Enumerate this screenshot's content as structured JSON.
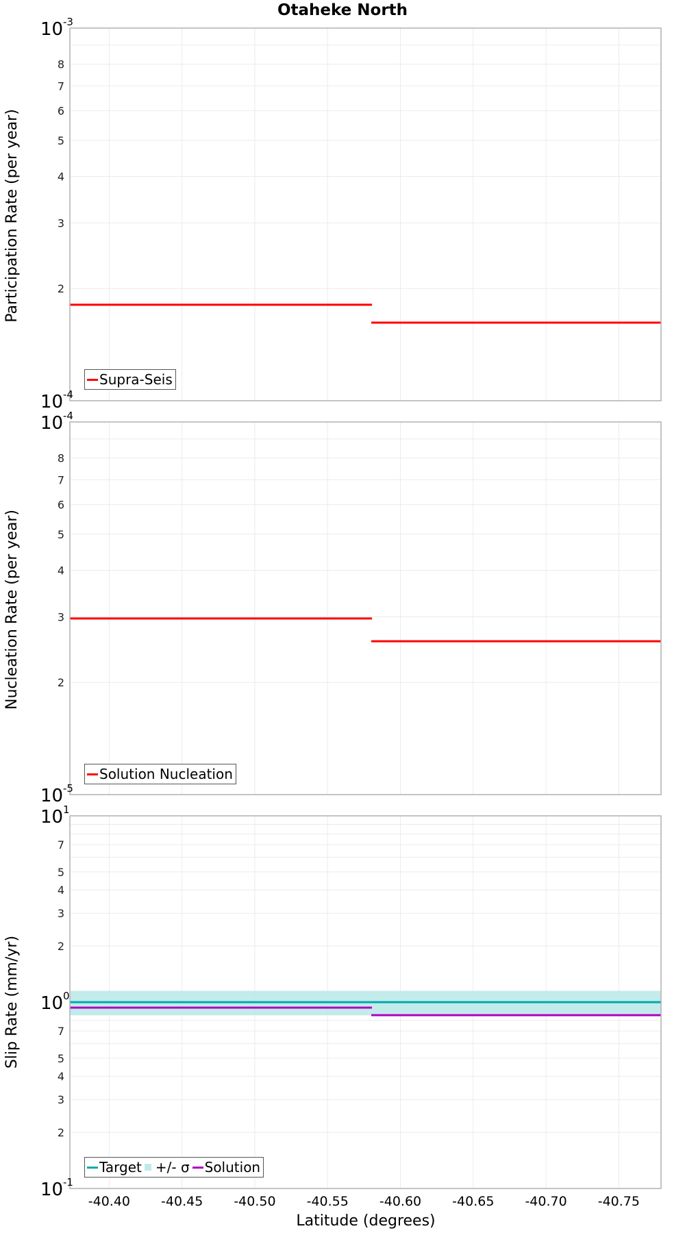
{
  "title": "Otaheke North",
  "colors": {
    "grid": "#ebebeb",
    "frame": "#b0b0b0",
    "supra_seis": "#ff0000",
    "solution_nucleation": "#ff0000",
    "target": "#00aaaa",
    "sigma_band": "#c0eaea",
    "solution": "#b000c0"
  },
  "chart_data": [
    {
      "type": "line",
      "title": "Otaheke North",
      "xlabel": "",
      "ylabel": "Participation Rate (per year)",
      "yscale": "log",
      "ylim": [
        0.0001,
        0.001
      ],
      "xlim": [
        -40.373,
        -40.779
      ],
      "xticks": [
        -40.4,
        -40.45,
        -40.5,
        -40.55,
        -40.6,
        -40.65,
        -40.7,
        -40.75
      ],
      "ytick_labels": [
        {
          "value": 0.001,
          "label": "10",
          "sup": "-3",
          "major": true
        },
        {
          "value": 0.0008,
          "label": "8"
        },
        {
          "value": 0.0007,
          "label": "7"
        },
        {
          "value": 0.0006,
          "label": "6"
        },
        {
          "value": 0.0005,
          "label": "5"
        },
        {
          "value": 0.0004,
          "label": "4"
        },
        {
          "value": 0.0003,
          "label": "3"
        },
        {
          "value": 0.0002,
          "label": "2"
        },
        {
          "value": 0.0001,
          "label": "10",
          "sup": "-4",
          "major": true
        }
      ],
      "grid_minor": [
        0.0009
      ],
      "grid": true,
      "legend_position": "lower-left",
      "series": [
        {
          "name": "Supra-Seis",
          "style": "step",
          "color": "#ff0000",
          "segments": [
            {
              "x0": -40.373,
              "x1": -40.58,
              "y": 0.000181
            },
            {
              "x0": -40.58,
              "x1": -40.779,
              "y": 0.000162
            }
          ]
        }
      ],
      "legend": [
        {
          "label": "Supra-Seis",
          "kind": "line",
          "color": "#ff0000"
        }
      ]
    },
    {
      "type": "line",
      "xlabel": "",
      "ylabel": "Nucleation Rate (per year)",
      "yscale": "log",
      "ylim": [
        1e-05,
        0.0001
      ],
      "xlim": [
        -40.373,
        -40.779
      ],
      "xticks": [
        -40.4,
        -40.45,
        -40.5,
        -40.55,
        -40.6,
        -40.65,
        -40.7,
        -40.75
      ],
      "ytick_labels": [
        {
          "value": 0.0001,
          "label": "10",
          "sup": "-4",
          "major": true
        },
        {
          "value": 8e-05,
          "label": "8"
        },
        {
          "value": 7e-05,
          "label": "7"
        },
        {
          "value": 6e-05,
          "label": "6"
        },
        {
          "value": 5e-05,
          "label": "5"
        },
        {
          "value": 4e-05,
          "label": "4"
        },
        {
          "value": 3e-05,
          "label": "3"
        },
        {
          "value": 2e-05,
          "label": "2"
        },
        {
          "value": 1e-05,
          "label": "10",
          "sup": "-5",
          "major": true
        }
      ],
      "grid_minor": [
        9e-05
      ],
      "grid": true,
      "legend_position": "lower-left",
      "series": [
        {
          "name": "Solution Nucleation",
          "style": "step",
          "color": "#ff0000",
          "segments": [
            {
              "x0": -40.373,
              "x1": -40.58,
              "y": 2.97e-05
            },
            {
              "x0": -40.58,
              "x1": -40.779,
              "y": 2.58e-05
            }
          ]
        }
      ],
      "legend": [
        {
          "label": "Solution Nucleation",
          "kind": "line",
          "color": "#ff0000"
        }
      ]
    },
    {
      "type": "line",
      "xlabel": "Latitude (degrees)",
      "ylabel": "Slip Rate (mm/yr)",
      "yscale": "log",
      "ylim": [
        0.1,
        10
      ],
      "xlim": [
        -40.373,
        -40.779
      ],
      "xticks": [
        -40.4,
        -40.45,
        -40.5,
        -40.55,
        -40.6,
        -40.65,
        -40.7,
        -40.75
      ],
      "xtick_labels": [
        "-40.40",
        "-40.45",
        "-40.50",
        "-40.55",
        "-40.60",
        "-40.65",
        "-40.70",
        "-40.75"
      ],
      "ytick_labels": [
        {
          "value": 10,
          "label": "10",
          "sup": "1",
          "major": true
        },
        {
          "value": 7,
          "label": "7"
        },
        {
          "value": 5,
          "label": "5"
        },
        {
          "value": 4,
          "label": "4"
        },
        {
          "value": 3,
          "label": "3"
        },
        {
          "value": 2,
          "label": "2"
        },
        {
          "value": 1,
          "label": "10",
          "sup": "0",
          "major": true
        },
        {
          "value": 0.7,
          "label": "7"
        },
        {
          "value": 0.5,
          "label": "5"
        },
        {
          "value": 0.4,
          "label": "4"
        },
        {
          "value": 0.3,
          "label": "3"
        },
        {
          "value": 0.2,
          "label": "2"
        },
        {
          "value": 0.1,
          "label": "10",
          "sup": "-1",
          "major": true
        }
      ],
      "grid_minor": [
        9,
        8,
        6,
        0.9,
        0.8,
        0.6
      ],
      "grid": true,
      "legend_position": "lower-left",
      "series": [
        {
          "name": "+/- σ",
          "style": "band",
          "color": "#c0eaea",
          "segments": [
            {
              "x0": -40.373,
              "x1": -40.779,
              "y_low": 0.85,
              "y_high": 1.15
            }
          ]
        },
        {
          "name": "Target",
          "style": "step",
          "color": "#00aaaa",
          "segments": [
            {
              "x0": -40.373,
              "x1": -40.58,
              "y": 1.0
            },
            {
              "x0": -40.58,
              "x1": -40.779,
              "y": 1.0
            }
          ]
        },
        {
          "name": "Solution",
          "style": "step",
          "color": "#b000c0",
          "segments": [
            {
              "x0": -40.373,
              "x1": -40.58,
              "y": 0.935
            },
            {
              "x0": -40.58,
              "x1": -40.779,
              "y": 0.851
            }
          ]
        }
      ],
      "legend": [
        {
          "label": "Target",
          "kind": "line",
          "color": "#00aaaa"
        },
        {
          "label": "+/- σ",
          "kind": "box",
          "color": "#c0eaea"
        },
        {
          "label": "Solution",
          "kind": "line",
          "color": "#b000c0"
        }
      ]
    }
  ],
  "panels": [
    {
      "ylabel": "Participation Rate (per year)",
      "legend": [
        "Supra-Seis"
      ]
    },
    {
      "ylabel": "Nucleation Rate (per year)",
      "legend": [
        "Solution Nucleation"
      ]
    },
    {
      "ylabel": "Slip Rate (mm/yr)",
      "legend": [
        "Target",
        "+/- σ",
        "Solution"
      ]
    }
  ],
  "xaxis": {
    "label": "Latitude (degrees)",
    "tick_labels": [
      "-40.40",
      "-40.45",
      "-40.50",
      "-40.55",
      "-40.60",
      "-40.65",
      "-40.70",
      "-40.75"
    ]
  }
}
